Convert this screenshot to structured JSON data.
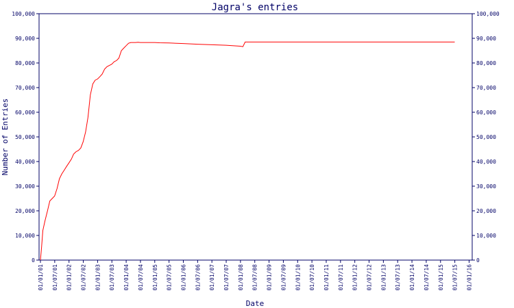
{
  "chart_data": {
    "type": "line",
    "title": "Jagra's entries",
    "xlabel": "Date",
    "ylabel": "Number of Entries",
    "ylim": [
      0,
      100000
    ],
    "yticks": [
      "0",
      "10,000",
      "20,000",
      "30,000",
      "40,000",
      "50,000",
      "60,000",
      "70,000",
      "80,000",
      "90,000",
      "100,000"
    ],
    "xticks": [
      "01/01/01",
      "01/07/01",
      "01/01/02",
      "01/07/02",
      "01/01/03",
      "01/07/03",
      "01/01/04",
      "01/07/04",
      "01/01/05",
      "01/07/05",
      "01/01/06",
      "01/07/06",
      "01/01/07",
      "01/07/07",
      "01/01/08",
      "01/07/08",
      "01/01/09",
      "01/07/09",
      "01/01/10",
      "01/07/10",
      "01/01/11",
      "01/07/11",
      "01/01/12",
      "01/07/12",
      "01/01/13",
      "01/07/13",
      "01/01/14",
      "01/07/14",
      "01/01/15",
      "01/07/15",
      "01/01/16"
    ],
    "grid": false,
    "colors": {
      "line": "#ff0000",
      "axis": "#000066",
      "text": "#000066"
    },
    "series": [
      {
        "x": [
          "2001-01-01",
          "2001-01-15",
          "2001-02-01",
          "2001-03-01",
          "2001-04-01",
          "2001-05-01",
          "2001-06-01",
          "2001-07-01",
          "2001-08-01",
          "2001-09-01",
          "2001-10-01",
          "2001-11-01",
          "2001-12-01",
          "2002-01-01",
          "2002-02-01",
          "2002-03-01",
          "2002-04-01",
          "2002-05-01",
          "2002-06-01",
          "2002-07-01",
          "2002-08-01",
          "2002-09-01",
          "2002-10-01",
          "2002-11-01",
          "2002-12-01",
          "2003-01-01",
          "2003-02-01",
          "2003-03-01",
          "2003-04-01",
          "2003-05-01",
          "2003-06-01",
          "2003-07-01",
          "2003-08-01",
          "2003-09-01",
          "2003-10-01",
          "2003-11-01",
          "2003-12-01",
          "2004-01-01",
          "2004-02-01",
          "2004-03-01",
          "2004-04-01",
          "2004-05-01",
          "2004-06-01",
          "2004-07-01",
          "2004-08-01",
          "2004-09-01",
          "2004-10-01",
          "2004-11-01",
          "2004-12-01",
          "2005-01-01",
          "2005-03-01",
          "2005-07-01",
          "2006-01-01",
          "2006-07-01",
          "2007-01-01",
          "2007-07-01",
          "2008-01-01",
          "2008-02-01",
          "2008-03-01",
          "2008-04-01",
          "2009-01-01",
          "2015-07-01"
        ],
        "values": [
          0,
          5000,
          12000,
          16000,
          20000,
          24000,
          25000,
          26000,
          29000,
          33000,
          35000,
          36500,
          38000,
          39500,
          41000,
          43000,
          44000,
          44500,
          45500,
          48000,
          52000,
          58000,
          67000,
          71500,
          73000,
          73500,
          74500,
          75500,
          77500,
          78500,
          79000,
          79500,
          80500,
          81000,
          82000,
          85000,
          86000,
          87000,
          88000,
          88300,
          88300,
          88300,
          88400,
          88300,
          88300,
          88300,
          88300,
          88300,
          88300,
          88300,
          88200,
          88100,
          87900,
          87600,
          87400,
          87200,
          86800,
          86600,
          88500,
          88500,
          88500,
          88500
        ]
      }
    ]
  }
}
